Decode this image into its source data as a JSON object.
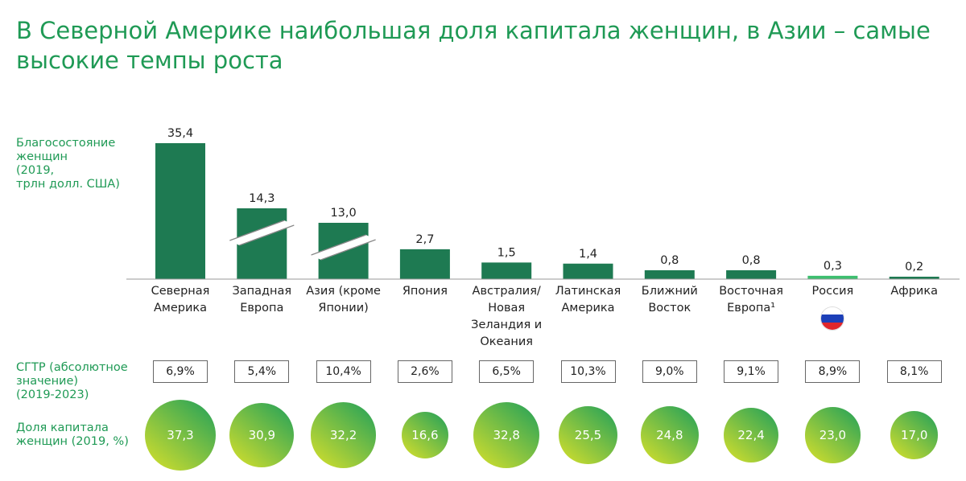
{
  "title": "В Северной Америке наибольшая доля капитала женщин, в Азии – самые высокие темпы роста",
  "row_labels": {
    "wealth": "Благосостояние\nженщин\n(2019,\nтрлн долл. США)",
    "cagr": "СГТР (абсолютное\nзначение)\n(2019-2023)",
    "share": "Доля капитала\nженщин (2019, %)"
  },
  "colors": {
    "title": "#1f9a55",
    "bar": "#1e7a52",
    "bar_highlight": "#3dbf6f"
  },
  "chart_data": {
    "type": "bar",
    "categories": [
      "Северная Америка",
      "Западная Европа",
      "Азия (кроме Японии)",
      "Япония",
      "Австралия/ Новая Зеландия и Океания",
      "Латинская Америка",
      "Ближний Восток",
      "Восточная Европа¹",
      "Россия",
      "Африка"
    ],
    "values": [
      35.4,
      14.3,
      13.0,
      2.7,
      1.5,
      1.4,
      0.8,
      0.8,
      0.3,
      0.2
    ],
    "value_labels": [
      "35,4",
      "14,3",
      "13,0",
      "2,7",
      "1,5",
      "1,4",
      "0,8",
      "0,8",
      "0,3",
      "0,2"
    ],
    "broken_axis_bars": [
      1,
      2
    ],
    "highlight_index": 8,
    "flag_index": 8,
    "cagr": [
      "6,9%",
      "5,4%",
      "10,4%",
      "2,6%",
      "6,5%",
      "10,3%",
      "9,0%",
      "9,1%",
      "8,9%",
      "8,1%"
    ],
    "share": [
      37.3,
      30.9,
      32.2,
      16.6,
      32.8,
      25.5,
      24.8,
      22.4,
      23.0,
      17.0
    ],
    "share_labels": [
      "37,3",
      "30,9",
      "32,2",
      "16,6",
      "32,8",
      "25,5",
      "24,8",
      "22,4",
      "23,0",
      "17,0"
    ],
    "ylabel": "Благосостояние женщин (2019, трлн долл. США)"
  }
}
